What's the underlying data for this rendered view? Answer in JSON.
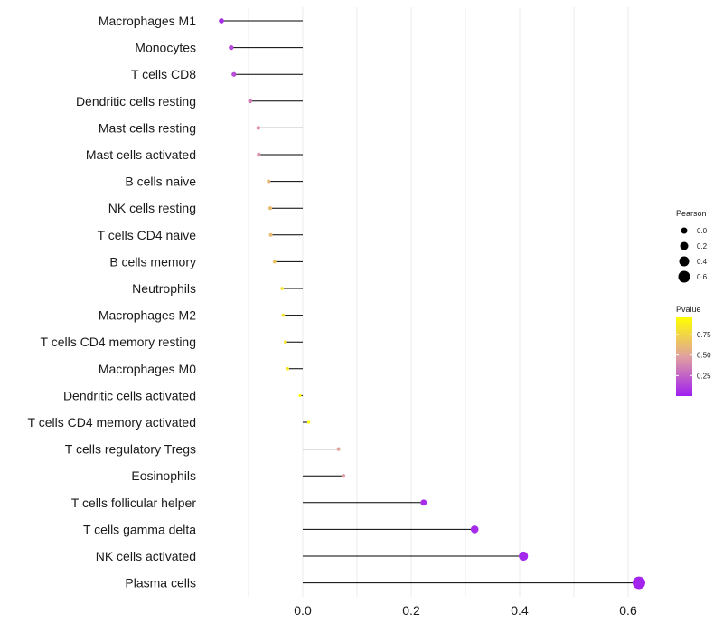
{
  "chart_data": {
    "type": "lollipop",
    "xlabel": "",
    "ylabel": "",
    "xlim": [
      -0.18,
      0.63
    ],
    "xticks": [
      0.0,
      0.2,
      0.4,
      0.6
    ],
    "xtick_labels": [
      "0.0",
      "0.2",
      "0.4",
      "0.6"
    ],
    "categories": [
      "Macrophages M1",
      "Monocytes",
      "T cells CD8",
      "Dendritic cells resting",
      "Mast cells resting",
      "Mast cells activated",
      "B cells naive",
      "NK cells resting",
      "T cells CD4 naive",
      "B cells memory",
      "Neutrophils",
      "Macrophages M2",
      "T cells CD4 memory resting",
      "Macrophages M0",
      "Dendritic cells activated",
      "T cells CD4 memory activated",
      "T cells regulatory  Tregs ",
      "Eosinophils",
      "T cells follicular helper",
      "T cells gamma delta",
      "NK cells activated",
      "Plasma cells"
    ],
    "pearson": [
      -0.15,
      -0.132,
      -0.127,
      -0.097,
      -0.082,
      -0.081,
      -0.063,
      -0.06,
      -0.059,
      -0.052,
      -0.038,
      -0.036,
      -0.032,
      -0.028,
      -0.005,
      0.011,
      0.066,
      0.075,
      0.223,
      0.317,
      0.407,
      0.62
    ],
    "pvalue": [
      0.05,
      0.15,
      0.17,
      0.35,
      0.43,
      0.43,
      0.6,
      0.62,
      0.62,
      0.66,
      0.82,
      0.82,
      0.84,
      0.86,
      0.98,
      0.99,
      0.5,
      0.46,
      0.05,
      0.04,
      0.03,
      0.02
    ],
    "legend": {
      "size_title": "Pearson",
      "size_values": [
        0.0,
        0.2,
        0.4,
        0.6
      ],
      "size_labels": [
        "0.0",
        "0.2",
        "0.4",
        "0.6"
      ],
      "color_title": "Pvalue",
      "color_ticks": [
        0.25,
        0.5,
        0.75
      ],
      "color_labels": [
        "0.25",
        "0.50",
        "0.75"
      ],
      "color_range": [
        0.0,
        0.96
      ],
      "position": "right"
    },
    "colors": {
      "low": "#a020f0",
      "mid": "#e0a0a0",
      "high": "#ffff00",
      "stem": "#000000",
      "grid": "#ebebeb"
    }
  }
}
